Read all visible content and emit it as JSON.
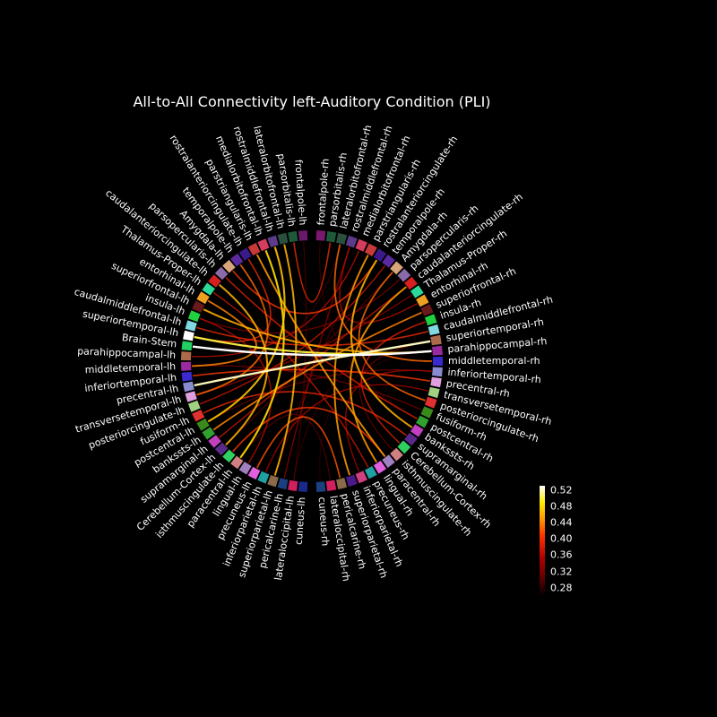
{
  "chart_data": {
    "type": "circular-connectivity",
    "title": "All-to-All Connectivity left-Auditory Condition (PLI)",
    "labels_rh": [
      "frontalpole-rh",
      "parsorbitalis-rh",
      "lateralorbitofrontal-rh",
      "rostralmiddlefrontal-rh",
      "medialorbitofrontal-rh",
      "parstriangularis-rh",
      "rostralanteriorcingulate-rh",
      "temporalpole-rh",
      "Amygdala-rh",
      "parsopercularis-rh",
      "caudalanteriorcingulate-rh",
      "Thalamus-Proper-rh",
      "entorhinal-rh",
      "superiorfrontal-rh",
      "insula-rh",
      "caudalmiddlefrontal-rh",
      "superiortemporal-rh",
      "parahippocampal-rh",
      "middletemporal-rh",
      "inferiortemporal-rh",
      "precentral-rh",
      "transversetemporal-rh",
      "posteriorcingulate-rh",
      "fusiform-rh",
      "postcentral-rh",
      "bankssts-rh",
      "supramarginal-rh",
      "Cerebellum-Cortex-rh",
      "isthmuscingulate-rh",
      "paracentral-rh",
      "lingual-rh",
      "precuneus-rh",
      "inferiorparietal-rh",
      "superiorparietal-rh",
      "pericalcarine-rh",
      "lateraloccipital-rh",
      "cuneus-rh"
    ],
    "labels_lh": [
      "frontalpole-lh",
      "parsorbitalis-lh",
      "lateralorbitofrontal-lh",
      "rostralmiddlefrontal-lh",
      "medialorbitofrontal-lh",
      "parstriangularis-lh",
      "rostralanteriorcingulate-lh",
      "temporalpole-lh",
      "Amygdala-lh",
      "parsopercularis-lh",
      "caudalanteriorcingulate-lh",
      "Thalamus-Proper-lh",
      "entorhinal-lh",
      "superiorfrontal-lh",
      "insula-lh",
      "caudalmiddlefrontal-lh",
      "superiortemporal-lh",
      "Brain-Stem",
      "parahippocampal-lh",
      "middletemporal-lh",
      "inferiortemporal-lh",
      "precentral-lh",
      "transversetemporal-lh",
      "posteriorcingulate-lh",
      "fusiform-lh",
      "postcentral-lh",
      "bankssts-lh",
      "supramarginal-lh",
      "Cerebellum-Cortex-lh",
      "isthmuscingulate-lh",
      "paracentral-lh",
      "lingual-lh",
      "precuneus-lh",
      "inferiorparietal-lh",
      "superiorparietal-lh",
      "pericalcarine-lh",
      "lateraloccipital-lh",
      "cuneus-lh"
    ],
    "node_colors_rh": [
      "#7a1a6e",
      "#1e5a3a",
      "#2b4f3f",
      "#5c3b8a",
      "#d63c5e",
      "#c83a3a",
      "#3a1a8a",
      "#5a2aa0",
      "#d9a57a",
      "#8a6aa8",
      "#d42020",
      "#2ad99a",
      "#f0a020",
      "#6a1a1a",
      "#20d040",
      "#80d8e0",
      "#ad6a4a",
      "#9a2aa0",
      "#3a2ad0",
      "#8a8ad0",
      "#e0a0e0",
      "#a0d080",
      "#e03030",
      "#3a8a1a",
      "#30a030",
      "#c040c0",
      "#5a2a8a",
      "#30d060",
      "#d08080",
      "#a080c0",
      "#e060e0",
      "#20a0a0",
      "#d04080",
      "#4a1a8a",
      "#8a6a4a",
      "#d02060",
      "#1a4080"
    ],
    "node_colors_lh": [
      "#6a1a6a",
      "#1e5a3a",
      "#2b4f3f",
      "#5c3b8a",
      "#d63c5e",
      "#c83a3a",
      "#3a1a8a",
      "#5a2aa0",
      "#d9a57a",
      "#8a6aa8",
      "#d42020",
      "#2ad99a",
      "#f0a020",
      "#6a1a1a",
      "#20d040",
      "#80d8e0",
      "#ffffff",
      "#20d060",
      "#ad6a4a",
      "#9a2aa0",
      "#3a2ad0",
      "#8a8ad0",
      "#e0a0e0",
      "#a0d080",
      "#e03030",
      "#3a8a1a",
      "#30a030",
      "#c040c0",
      "#5a2a8a",
      "#30d060",
      "#d08080",
      "#a080c0",
      "#e060e0",
      "#20a0a0",
      "#8a6a4a",
      "#1a4080",
      "#d02060",
      "#1a2a8a"
    ],
    "colorbar": {
      "ticks": [
        "0.52",
        "0.48",
        "0.44",
        "0.40",
        "0.36",
        "0.32",
        "0.28"
      ],
      "range": [
        0.26,
        0.53
      ]
    },
    "colorbar_values": [
      0.52,
      0.48,
      0.44,
      0.4,
      0.36,
      0.32,
      0.28
    ],
    "connections": [
      {
        "a": "lh:17",
        "b": "rh:17",
        "w": 0.53
      },
      {
        "a": "lh:21",
        "b": "rh:16",
        "w": 0.52
      },
      {
        "a": "lh:16",
        "b": "rh:17",
        "w": 0.5
      },
      {
        "a": "lh:4",
        "b": "lh:30",
        "w": 0.48
      },
      {
        "a": "lh:3",
        "b": "lh:25",
        "w": 0.47
      },
      {
        "a": "lh:2",
        "b": "lh:34",
        "w": 0.46
      },
      {
        "a": "lh:10",
        "b": "lh:28",
        "w": 0.46
      },
      {
        "a": "lh:5",
        "b": "rh:29",
        "w": 0.45
      },
      {
        "a": "rh:6",
        "b": "rh:25",
        "w": 0.46
      },
      {
        "a": "rh:5",
        "b": "rh:33",
        "w": 0.45
      },
      {
        "a": "rh:10",
        "b": "rh:30",
        "w": 0.45
      },
      {
        "a": "lh:13",
        "b": "rh:17",
        "w": 0.46
      },
      {
        "a": "lh:26",
        "b": "rh:13",
        "w": 0.44
      },
      {
        "a": "lh:12",
        "b": "lh:19",
        "w": 0.44
      },
      {
        "a": "lh:7",
        "b": "lh:22",
        "w": 0.43
      },
      {
        "a": "rh:8",
        "b": "rh:22",
        "w": 0.43
      },
      {
        "a": "rh:2",
        "b": "rh:18",
        "w": 0.43
      },
      {
        "a": "lh:32",
        "b": "rh:34",
        "w": 0.42
      },
      {
        "a": "lh:29",
        "b": "rh:29",
        "w": 0.41
      },
      {
        "a": "lh:20",
        "b": "rh:20",
        "w": 0.41
      },
      {
        "a": "lh:8",
        "b": "rh:6",
        "w": 0.41
      },
      {
        "a": "lh:1",
        "b": "rh:1",
        "w": 0.4
      },
      {
        "a": "lh:24",
        "b": "rh:26",
        "w": 0.4
      },
      {
        "a": "lh:15",
        "b": "rh:15",
        "w": 0.4
      },
      {
        "a": "lh:6",
        "b": "lh:16",
        "w": 0.4
      },
      {
        "a": "rh:14",
        "b": "rh:27",
        "w": 0.39
      },
      {
        "a": "lh:9",
        "b": "rh:24",
        "w": 0.39
      },
      {
        "a": "lh:27",
        "b": "rh:10",
        "w": 0.38
      },
      {
        "a": "lh:11",
        "b": "rh:31",
        "w": 0.38
      },
      {
        "a": "lh:23",
        "b": "rh:7",
        "w": 0.38
      },
      {
        "a": "lh:18",
        "b": "rh:4",
        "w": 0.37
      },
      {
        "a": "lh:31",
        "b": "lh:14",
        "w": 0.37
      },
      {
        "a": "rh:3",
        "b": "rh:12",
        "w": 0.37
      },
      {
        "a": "rh:19",
        "b": "rh:32",
        "w": 0.36
      },
      {
        "a": "lh:33",
        "b": "rh:21",
        "w": 0.36
      },
      {
        "a": "lh:35",
        "b": "rh:3",
        "w": 0.35
      },
      {
        "a": "lh:22",
        "b": "rh:11",
        "w": 0.35
      },
      {
        "a": "lh:14",
        "b": "rh:9",
        "w": 0.34
      },
      {
        "a": "lh:19",
        "b": "rh:23",
        "w": 0.34
      },
      {
        "a": "lh:25",
        "b": "rh:19",
        "w": 0.33
      },
      {
        "a": "rh:16",
        "b": "rh:28",
        "w": 0.33
      },
      {
        "a": "lh:28",
        "b": "rh:8",
        "w": 0.32
      },
      {
        "a": "lh:30",
        "b": "rh:35",
        "w": 0.32
      },
      {
        "a": "lh:0",
        "b": "lh:36",
        "w": 0.31
      },
      {
        "a": "lh:34",
        "b": "rh:5",
        "w": 0.31
      },
      {
        "a": "rh:0",
        "b": "rh:24",
        "w": 0.3
      },
      {
        "a": "lh:36",
        "b": "rh:14",
        "w": 0.3
      },
      {
        "a": "lh:21",
        "b": "rh:2",
        "w": 0.3
      },
      {
        "a": "lh:17",
        "b": "lh:5",
        "w": 0.29
      },
      {
        "a": "rh:17",
        "b": "rh:36",
        "w": 0.29
      },
      {
        "a": "lh:3",
        "b": "rh:18",
        "w": 0.28
      },
      {
        "a": "lh:16",
        "b": "rh:30",
        "w": 0.28
      },
      {
        "a": "lh:10",
        "b": "rh:12",
        "w": 0.27
      },
      {
        "a": "lh:13",
        "b": "rh:33",
        "w": 0.27
      }
    ]
  }
}
